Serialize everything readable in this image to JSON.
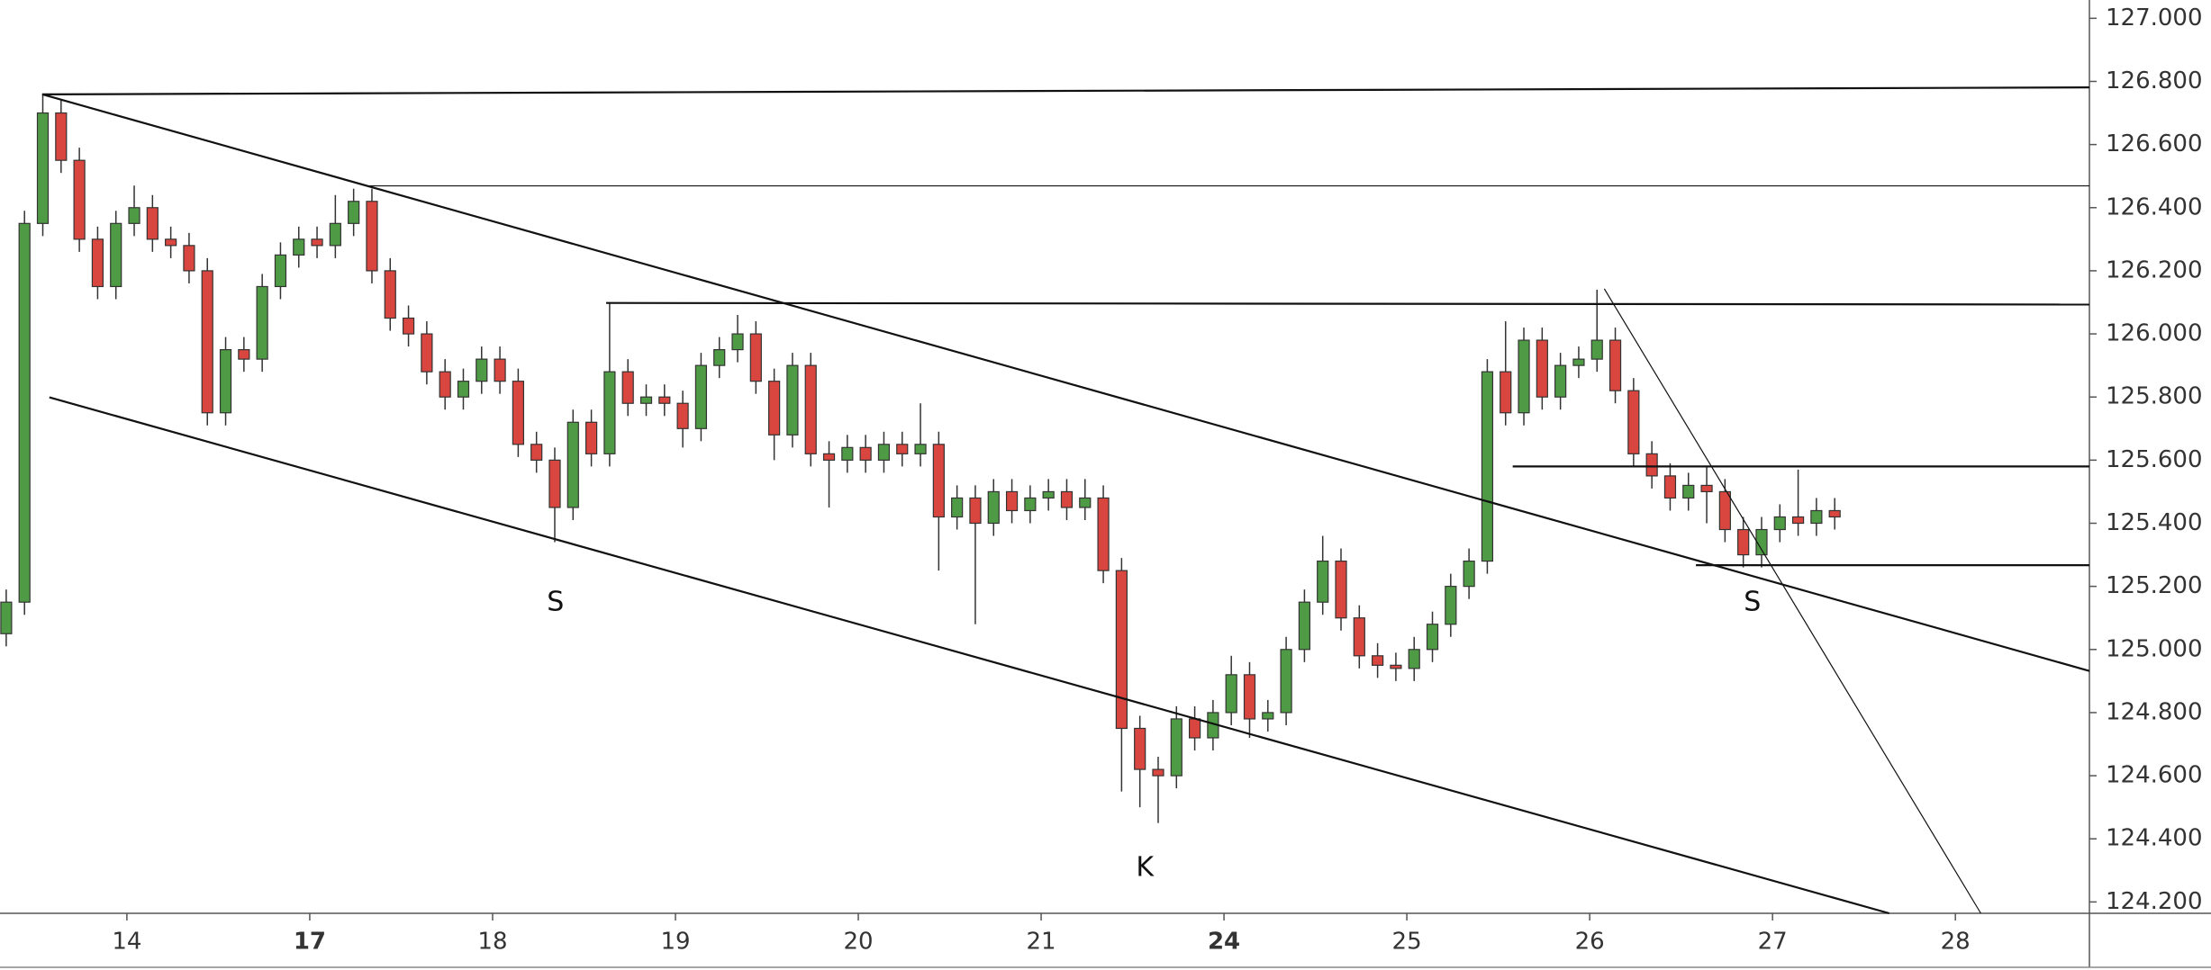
{
  "chart_data": {
    "type": "candlestick",
    "up_color": "#4f9a45",
    "down_color": "#d9463f",
    "xlim": [
      -0.694,
      10.733
    ],
    "ylim": [
      124.164,
      127.058
    ],
    "xticks": [
      {
        "value": 0,
        "label": "14"
      },
      {
        "value": 1,
        "label": "17",
        "bold": true
      },
      {
        "value": 2,
        "label": "18"
      },
      {
        "value": 3,
        "label": "19"
      },
      {
        "value": 4,
        "label": "20"
      },
      {
        "value": 5,
        "label": "21"
      },
      {
        "value": 6,
        "label": "24",
        "bold": true
      },
      {
        "value": 7,
        "label": "25"
      },
      {
        "value": 8,
        "label": "26"
      },
      {
        "value": 9,
        "label": "27"
      },
      {
        "value": 10,
        "label": "28"
      }
    ],
    "yticks": [
      {
        "value": 124.2,
        "label": "124.200"
      },
      {
        "value": 124.4,
        "label": "124.400"
      },
      {
        "value": 124.6,
        "label": "124.600"
      },
      {
        "value": 124.8,
        "label": "124.800"
      },
      {
        "value": 125.0,
        "label": "125.000"
      },
      {
        "value": 125.2,
        "label": "125.200"
      },
      {
        "value": 125.4,
        "label": "125.400"
      },
      {
        "value": 125.6,
        "label": "125.600"
      },
      {
        "value": 125.8,
        "label": "125.800"
      },
      {
        "value": 126.0,
        "label": "126.000"
      },
      {
        "value": 126.2,
        "label": "126.200"
      },
      {
        "value": 126.4,
        "label": "126.400"
      },
      {
        "value": 126.6,
        "label": "126.600"
      },
      {
        "value": 126.8,
        "label": "126.800"
      },
      {
        "value": 127.0,
        "label": "127.000"
      }
    ],
    "x": [
      -0.66,
      -0.56,
      -0.46,
      -0.36,
      -0.26,
      -0.16,
      -0.06,
      0.04,
      0.14,
      0.24,
      0.34,
      0.44,
      0.54,
      0.64,
      0.74,
      0.84,
      0.94,
      1.04,
      1.14,
      1.24,
      1.34,
      1.44,
      1.54,
      1.64,
      1.74,
      1.84,
      1.94,
      2.04,
      2.14,
      2.24,
      2.34,
      2.44,
      2.54,
      2.64,
      2.74,
      2.84,
      2.94,
      3.04,
      3.14,
      3.24,
      3.34,
      3.44,
      3.54,
      3.64,
      3.74,
      3.84,
      3.94,
      4.04,
      4.14,
      4.24,
      4.34,
      4.44,
      4.54,
      4.64,
      4.74,
      4.84,
      4.94,
      5.04,
      5.14,
      5.24,
      5.34,
      5.44,
      5.54,
      5.64,
      5.74,
      5.84,
      5.94,
      6.04,
      6.14,
      6.24,
      6.34,
      6.44,
      6.54,
      6.64,
      6.74,
      6.84,
      6.94,
      7.04,
      7.14,
      7.24,
      7.34,
      7.44,
      7.54,
      7.64,
      7.74,
      7.84,
      7.94,
      8.04,
      8.14,
      8.24,
      8.34,
      8.44,
      8.54,
      8.64,
      8.74,
      8.84,
      8.94,
      9.04,
      9.14,
      9.24,
      9.34
    ],
    "open": [
      125.05,
      125.15,
      126.35,
      126.7,
      126.55,
      126.3,
      126.15,
      126.35,
      126.4,
      126.3,
      126.28,
      126.2,
      125.75,
      125.95,
      125.92,
      126.15,
      126.25,
      126.3,
      126.28,
      126.35,
      126.42,
      126.2,
      126.05,
      126.0,
      125.88,
      125.8,
      125.85,
      125.92,
      125.85,
      125.65,
      125.6,
      125.45,
      125.72,
      125.62,
      125.88,
      125.78,
      125.8,
      125.78,
      125.7,
      125.9,
      125.95,
      126.0,
      125.85,
      125.68,
      125.9,
      125.62,
      125.6,
      125.64,
      125.6,
      125.65,
      125.62,
      125.65,
      125.42,
      125.48,
      125.4,
      125.5,
      125.44,
      125.48,
      125.5,
      125.45,
      125.48,
      125.25,
      124.75,
      124.62,
      124.6,
      124.78,
      124.72,
      124.8,
      124.92,
      124.78,
      124.8,
      125.0,
      125.15,
      125.28,
      125.1,
      124.98,
      124.95,
      124.94,
      125.0,
      125.08,
      125.2,
      125.28,
      125.88,
      125.75,
      125.98,
      125.8,
      125.9,
      125.92,
      125.98,
      125.82,
      125.62,
      125.55,
      125.48,
      125.52,
      125.5,
      125.38,
      125.3,
      125.38,
      125.42,
      125.4,
      125.44
    ],
    "high": [
      125.19,
      126.39,
      126.76,
      126.74,
      126.59,
      126.34,
      126.39,
      126.47,
      126.44,
      126.34,
      126.32,
      126.24,
      125.99,
      125.99,
      126.19,
      126.29,
      126.34,
      126.34,
      126.44,
      126.46,
      126.46,
      126.24,
      126.09,
      126.04,
      125.92,
      125.89,
      125.96,
      125.96,
      125.89,
      125.69,
      125.64,
      125.76,
      125.76,
      126.1,
      125.92,
      125.84,
      125.84,
      125.82,
      125.94,
      125.99,
      126.06,
      126.04,
      125.89,
      125.94,
      125.94,
      125.66,
      125.68,
      125.68,
      125.69,
      125.69,
      125.78,
      125.69,
      125.52,
      125.52,
      125.54,
      125.54,
      125.52,
      125.54,
      125.54,
      125.54,
      125.52,
      125.29,
      124.79,
      124.66,
      124.82,
      124.82,
      124.84,
      124.98,
      124.96,
      124.84,
      125.04,
      125.19,
      125.36,
      125.32,
      125.14,
      125.02,
      124.99,
      125.04,
      125.12,
      125.24,
      125.32,
      125.92,
      126.04,
      126.02,
      126.02,
      125.94,
      125.96,
      126.14,
      126.02,
      125.86,
      125.66,
      125.59,
      125.56,
      125.58,
      125.54,
      125.42,
      125.42,
      125.46,
      125.57,
      125.48,
      125.48
    ],
    "low": [
      125.01,
      125.11,
      126.31,
      126.51,
      126.26,
      126.11,
      126.11,
      126.31,
      126.26,
      126.24,
      126.16,
      125.71,
      125.71,
      125.88,
      125.88,
      126.11,
      126.21,
      126.24,
      126.24,
      126.31,
      126.16,
      126.01,
      125.96,
      125.84,
      125.76,
      125.76,
      125.81,
      125.81,
      125.61,
      125.56,
      125.34,
      125.41,
      125.58,
      125.58,
      125.74,
      125.74,
      125.74,
      125.64,
      125.66,
      125.86,
      125.91,
      125.81,
      125.6,
      125.64,
      125.58,
      125.45,
      125.56,
      125.56,
      125.56,
      125.58,
      125.58,
      125.25,
      125.38,
      125.08,
      125.36,
      125.4,
      125.4,
      125.44,
      125.41,
      125.41,
      125.21,
      124.55,
      124.5,
      124.45,
      124.56,
      124.68,
      124.68,
      124.76,
      124.72,
      124.74,
      124.76,
      124.96,
      125.11,
      125.06,
      124.94,
      124.91,
      124.9,
      124.9,
      124.96,
      125.04,
      125.16,
      125.24,
      125.71,
      125.71,
      125.76,
      125.76,
      125.86,
      125.88,
      125.78,
      125.58,
      125.51,
      125.44,
      125.44,
      125.4,
      125.34,
      125.26,
      125.26,
      125.34,
      125.36,
      125.36,
      125.38
    ],
    "close": [
      125.15,
      126.35,
      126.7,
      126.55,
      126.3,
      126.15,
      126.35,
      126.4,
      126.3,
      126.28,
      126.2,
      125.75,
      125.95,
      125.92,
      126.15,
      126.25,
      126.3,
      126.28,
      126.35,
      126.42,
      126.2,
      126.05,
      126.0,
      125.88,
      125.8,
      125.85,
      125.92,
      125.85,
      125.65,
      125.6,
      125.45,
      125.72,
      125.62,
      125.88,
      125.78,
      125.8,
      125.78,
      125.7,
      125.9,
      125.95,
      126.0,
      125.85,
      125.68,
      125.9,
      125.62,
      125.6,
      125.64,
      125.6,
      125.65,
      125.62,
      125.65,
      125.42,
      125.48,
      125.4,
      125.5,
      125.44,
      125.48,
      125.5,
      125.45,
      125.48,
      125.25,
      124.75,
      124.62,
      124.6,
      124.78,
      124.72,
      124.8,
      124.92,
      124.78,
      124.8,
      125.0,
      125.15,
      125.28,
      125.1,
      124.98,
      124.95,
      124.94,
      125.0,
      125.08,
      125.2,
      125.28,
      125.88,
      125.75,
      125.98,
      125.8,
      125.9,
      125.92,
      125.98,
      125.82,
      125.62,
      125.55,
      125.48,
      125.52,
      125.5,
      125.38,
      125.3,
      125.38,
      125.42,
      125.4,
      125.44,
      125.42
    ],
    "lines": [
      {
        "x": [
          -0.463,
          10.733
        ],
        "y": [
          126.759,
          126.781
        ],
        "weight": "normal"
      },
      {
        "x": [
          1.326,
          10.733
        ],
        "y": [
          126.469,
          126.469
        ],
        "weight": "thin"
      },
      {
        "x": [
          -0.463,
          10.733
        ],
        "y": [
          126.759,
          124.932
        ],
        "weight": "normal"
      },
      {
        "x": [
          -0.424,
          9.638
        ],
        "y": [
          125.799,
          124.164
        ],
        "weight": "normal"
      },
      {
        "x": [
          2.621,
          10.733
        ],
        "y": [
          126.098,
          126.093
        ],
        "weight": "normal"
      },
      {
        "x": [
          7.579,
          10.733
        ],
        "y": [
          125.58,
          125.58
        ],
        "weight": "normal"
      },
      {
        "x": [
          8.581,
          10.733
        ],
        "y": [
          125.267,
          125.267
        ],
        "weight": "normal"
      },
      {
        "x": [
          8.08,
          10.139
        ],
        "y": [
          126.143,
          124.164
        ],
        "weight": "thin"
      }
    ],
    "annotations": [
      {
        "text": "S",
        "x": 2.344,
        "y": 125.147
      },
      {
        "text": "K",
        "x": 5.567,
        "y": 124.307
      },
      {
        "text": "S",
        "x": 8.89,
        "y": 125.147
      }
    ]
  }
}
